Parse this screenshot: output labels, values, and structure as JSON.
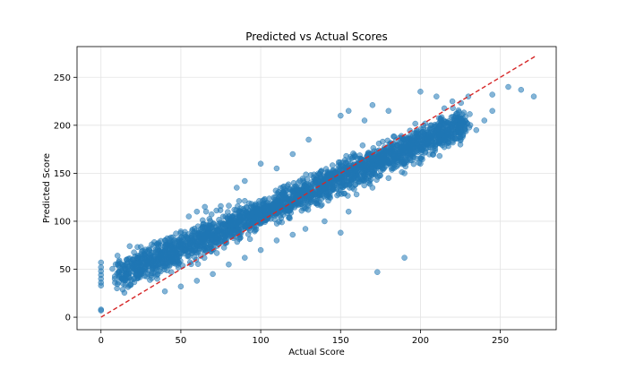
{
  "chart_data": {
    "type": "scatter",
    "title": "Predicted vs Actual Scores",
    "xlabel": "Actual Score",
    "ylabel": "Predicted Score",
    "xlim": [
      -15,
      285
    ],
    "ylim": [
      -13,
      282
    ],
    "xticks": [
      0,
      50,
      100,
      150,
      200,
      250
    ],
    "yticks": [
      0,
      50,
      100,
      150,
      200,
      250
    ],
    "grid": true,
    "point_color": "#1f77b4",
    "point_alpha": 0.55,
    "reference_line": {
      "x": [
        0,
        272
      ],
      "y": [
        0,
        272
      ],
      "style": "dashed",
      "color": "#d62728"
    },
    "trend": {
      "slope": 0.73,
      "intercept": 36,
      "spread": 14,
      "actual_range": [
        10,
        228
      ]
    },
    "points": [
      [
        0,
        7
      ],
      [
        0,
        8
      ],
      [
        0,
        33
      ],
      [
        0,
        36
      ],
      [
        0,
        40
      ],
      [
        0,
        44
      ],
      [
        0,
        48
      ],
      [
        0,
        52
      ],
      [
        0,
        57
      ],
      [
        10,
        30
      ],
      [
        18,
        74
      ],
      [
        30,
        62
      ],
      [
        40,
        70
      ],
      [
        55,
        105
      ],
      [
        60,
        110
      ],
      [
        65,
        115
      ],
      [
        85,
        135
      ],
      [
        90,
        142
      ],
      [
        100,
        160
      ],
      [
        110,
        155
      ],
      [
        120,
        170
      ],
      [
        130,
        185
      ],
      [
        150,
        210
      ],
      [
        155,
        215
      ],
      [
        165,
        205
      ],
      [
        170,
        221
      ],
      [
        180,
        215
      ],
      [
        200,
        235
      ],
      [
        210,
        230
      ],
      [
        220,
        225
      ],
      [
        230,
        230
      ],
      [
        245,
        232
      ],
      [
        255,
        240
      ],
      [
        263,
        237
      ],
      [
        271,
        230
      ],
      [
        245,
        215
      ],
      [
        240,
        205
      ],
      [
        235,
        195
      ],
      [
        225,
        180
      ],
      [
        212,
        168
      ],
      [
        200,
        160
      ],
      [
        190,
        150
      ],
      [
        180,
        145
      ],
      [
        170,
        135
      ],
      [
        160,
        128
      ],
      [
        155,
        110
      ],
      [
        150,
        88
      ],
      [
        173,
        47
      ],
      [
        190,
        62
      ],
      [
        140,
        100
      ],
      [
        128,
        92
      ],
      [
        120,
        86
      ],
      [
        110,
        80
      ],
      [
        100,
        70
      ],
      [
        90,
        62
      ],
      [
        80,
        55
      ],
      [
        70,
        45
      ],
      [
        60,
        38
      ],
      [
        50,
        32
      ],
      [
        40,
        27
      ]
    ]
  }
}
